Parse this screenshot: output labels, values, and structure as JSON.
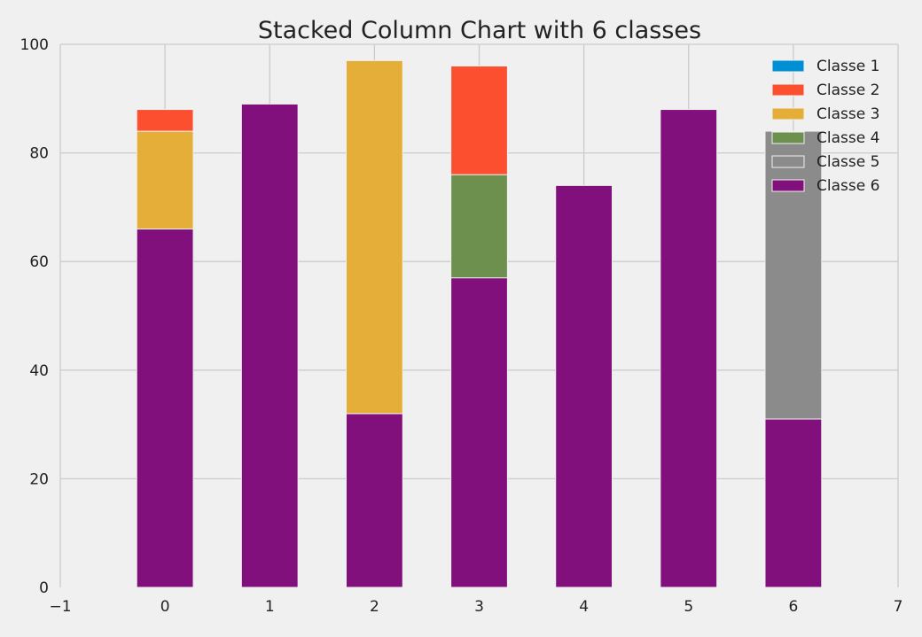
{
  "chart_data": {
    "type": "bar",
    "stacked": true,
    "title": "Stacked Column Chart with 6 classes",
    "xlabel": "",
    "ylabel": "",
    "x": [
      0,
      1,
      2,
      3,
      4,
      5,
      6
    ],
    "xlim": [
      -1,
      7
    ],
    "ylim": [
      0,
      100
    ],
    "xticks": [
      "−1",
      "0",
      "1",
      "2",
      "3",
      "4",
      "5",
      "6",
      "7"
    ],
    "yticks": [
      "0",
      "20",
      "40",
      "60",
      "80",
      "100"
    ],
    "grid": true,
    "legend_position": "top-right",
    "series": [
      {
        "name": "Classe 1",
        "color": "#008fd5",
        "values": [
          0,
          0,
          0,
          0,
          0,
          0,
          0
        ]
      },
      {
        "name": "Classe 2",
        "color": "#fc4f30",
        "values": [
          4,
          0,
          0,
          20,
          0,
          0,
          0
        ]
      },
      {
        "name": "Classe 3",
        "color": "#e5ae38",
        "values": [
          18,
          0,
          65,
          0,
          0,
          0,
          0
        ]
      },
      {
        "name": "Classe 4",
        "color": "#6d904f",
        "values": [
          0,
          0,
          0,
          19,
          0,
          0,
          0
        ]
      },
      {
        "name": "Classe 5",
        "color": "#8b8b8b",
        "values": [
          0,
          0,
          0,
          0,
          0,
          0,
          53
        ]
      },
      {
        "name": "Classe 6",
        "color": "#810f7c",
        "values": [
          66,
          89,
          32,
          57,
          74,
          88,
          31
        ]
      }
    ]
  }
}
